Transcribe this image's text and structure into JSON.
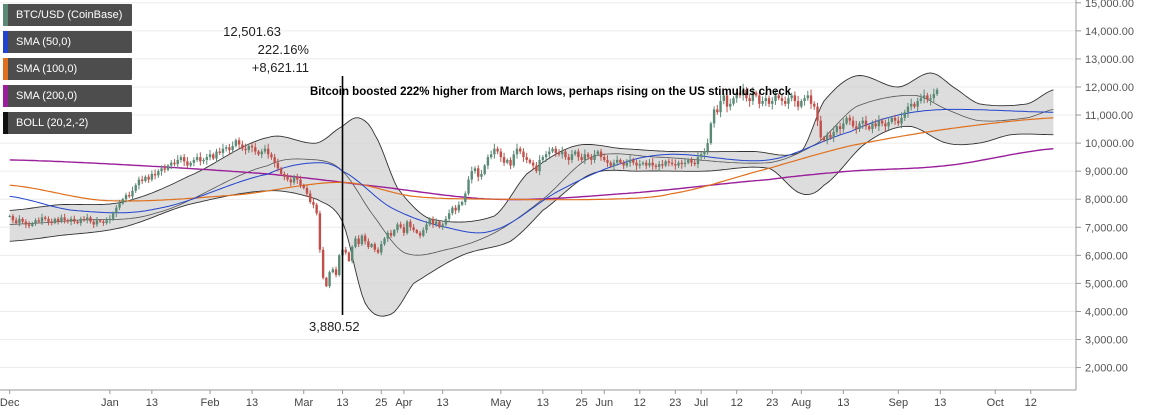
{
  "legend": [
    {
      "label": "BTC/USD (CoinBase)",
      "color": "#5a8a76"
    },
    {
      "label": "SMA (50,0)",
      "color": "#2244cc"
    },
    {
      "label": "SMA (100,0)",
      "color": "#e0701e"
    },
    {
      "label": "SMA (200,0)",
      "color": "#9a1f9a"
    },
    {
      "label": "BOLL (20,2,-2)",
      "color": "#111111"
    }
  ],
  "annotations": {
    "high_price": "12,501.63",
    "gain_pct": "222.16%",
    "gain_abs": "+8,621.11",
    "low_price": "3,880.52",
    "headline": "Bitcoin boosted 222% higher from March lows, perhaps rising on the US stimulus check"
  },
  "chart_data": {
    "type": "candlestick",
    "yaxis": {
      "ticks": [
        2000,
        3000,
        4000,
        5000,
        6000,
        7000,
        8000,
        9000,
        10000,
        11000,
        12000,
        13000,
        14000,
        15000
      ],
      "tick_labels": [
        "2,000.00",
        "3,000.00",
        "4,000.00",
        "5,000.00",
        "6,000.00",
        "7,000.00",
        "8,000.00",
        "9,000.00",
        "10,000.00",
        "11,000.00",
        "12,000.00",
        "13,000.00",
        "14,000.00",
        "15,000.00"
      ],
      "ylim": [
        1200,
        15100
      ]
    },
    "xaxis": {
      "tick_labels": [
        "Dec",
        "Jan",
        "13",
        "Feb",
        "13",
        "Mar",
        "13",
        "25",
        "Apr",
        "13",
        "May",
        "13",
        "25",
        "Jun",
        "12",
        "23",
        "Jul",
        "12",
        "23",
        "Aug",
        "13",
        "Sep",
        "13",
        "Oct",
        "12"
      ],
      "tick_days": [
        0,
        31,
        44,
        62,
        75,
        91,
        103,
        115,
        122,
        134,
        152,
        165,
        177,
        184,
        195,
        206,
        214,
        225,
        236,
        245,
        258,
        275,
        288,
        305,
        316
      ],
      "xlim": [
        -3,
        330
      ]
    },
    "candles_close": [
      7400,
      7250,
      7150,
      7300,
      7200,
      7100,
      7050,
      7150,
      7250,
      7200,
      7350,
      7300,
      7200,
      7150,
      7300,
      7200,
      7350,
      7250,
      7200,
      7300,
      7200,
      7150,
      7300,
      7250,
      7350,
      7200,
      7100,
      7250,
      7200,
      7150,
      7250,
      7300,
      7500,
      7700,
      7850,
      8000,
      8150,
      8100,
      8300,
      8500,
      8700,
      8650,
      8800,
      8700,
      8900,
      8850,
      9000,
      9100,
      9050,
      9200,
      9300,
      9250,
      9400,
      9500,
      9350,
      9200,
      9300,
      9400,
      9500,
      9350,
      9400,
      9500,
      9600,
      9450,
      9700,
      9650,
      9800,
      9850,
      9750,
      9900,
      10100,
      9950,
      9800,
      9750,
      9900,
      9850,
      9700,
      9600,
      9700,
      9800,
      9600,
      9500,
      9300,
      9100,
      8900,
      8800,
      8700,
      8600,
      8800,
      8700,
      8500,
      8400,
      8200,
      7900,
      7800,
      7500,
      6200,
      5200,
      4900,
      5400,
      5500,
      5300,
      6000,
      6200,
      6100,
      5800,
      6300,
      6600,
      6400,
      6700,
      6500,
      6300,
      6400,
      6200,
      6100,
      6400,
      6600,
      6800,
      6700,
      6900,
      7100,
      7000,
      6800,
      7200,
      7000,
      6900,
      6800,
      6700,
      6900,
      7100,
      7300,
      7100,
      7200,
      7000,
      7100,
      7300,
      7500,
      7700,
      7600,
      7800,
      7900,
      8200,
      8700,
      9000,
      9100,
      8800,
      8900,
      9200,
      9500,
      9600,
      9800,
      9700,
      9500,
      9300,
      9400,
      9200,
      9600,
      9800,
      9700,
      9500,
      9400,
      9300,
      9200,
      9000,
      9400,
      9500,
      9600,
      9700,
      9800,
      9650,
      9600,
      9700,
      9500,
      9400,
      9600,
      9700,
      9500,
      9400,
      9600,
      9500,
      9400,
      9600,
      9700,
      9500,
      9400,
      9300,
      9200,
      9300,
      9400,
      9300,
      9200,
      9300,
      9400,
      9300,
      9200,
      9250,
      9300,
      9200,
      9300,
      9200,
      9150,
      9250,
      9200,
      9350,
      9300,
      9250,
      9200,
      9300,
      9250,
      9300,
      9400,
      9300,
      9250,
      9500,
      9600,
      9700,
      10000,
      10700,
      11200,
      11100,
      11500,
      11700,
      11300,
      11400,
      11600,
      11800,
      11700,
      11900,
      11600,
      11500,
      11800,
      11700,
      11400,
      11500,
      11600,
      11400,
      11500,
      11700,
      11600,
      11500,
      11400,
      11600,
      11700,
      11500,
      11300,
      11500,
      11600,
      11700,
      11400,
      11300,
      10800,
      10200,
      10100,
      10300,
      10200,
      10400,
      10600,
      10500,
      10700,
      10900,
      10800,
      10600,
      10500,
      10700,
      10800,
      10600,
      10500,
      10700,
      10600,
      10800,
      10700,
      10600,
      10750,
      10900,
      10800,
      10700,
      10900,
      11100,
      11300,
      11400,
      11300,
      11500,
      11600,
      11700,
      11550,
      11600,
      11750,
      11900
    ],
    "sma50": [
      [
        0,
        8100
      ],
      [
        20,
        7600
      ],
      [
        45,
        7650
      ],
      [
        80,
        8900
      ],
      [
        95,
        9300
      ],
      [
        103,
        9000
      ],
      [
        118,
        7700
      ],
      [
        135,
        7000
      ],
      [
        150,
        6900
      ],
      [
        170,
        8300
      ],
      [
        190,
        9300
      ],
      [
        205,
        9600
      ],
      [
        235,
        9400
      ],
      [
        260,
        10400
      ],
      [
        275,
        11000
      ],
      [
        290,
        11200
      ],
      [
        323,
        11100
      ]
    ],
    "sma100": [
      [
        0,
        8500
      ],
      [
        30,
        7950
      ],
      [
        70,
        8150
      ],
      [
        103,
        8600
      ],
      [
        125,
        8100
      ],
      [
        150,
        8000
      ],
      [
        185,
        8000
      ],
      [
        205,
        8200
      ],
      [
        235,
        9100
      ],
      [
        260,
        9900
      ],
      [
        290,
        10500
      ],
      [
        323,
        10900
      ]
    ],
    "sma200": [
      [
        0,
        9400
      ],
      [
        40,
        9200
      ],
      [
        80,
        8900
      ],
      [
        110,
        8500
      ],
      [
        150,
        8000
      ],
      [
        190,
        8200
      ],
      [
        235,
        8700
      ],
      [
        260,
        9000
      ],
      [
        290,
        9200
      ],
      [
        323,
        9800
      ]
    ],
    "boll_upper": [
      [
        0,
        7600
      ],
      [
        15,
        7800
      ],
      [
        35,
        7900
      ],
      [
        55,
        8800
      ],
      [
        80,
        10200
      ],
      [
        95,
        10000
      ],
      [
        103,
        10600
      ],
      [
        108,
        10900
      ],
      [
        113,
        10300
      ],
      [
        120,
        8400
      ],
      [
        130,
        7300
      ],
      [
        150,
        7400
      ],
      [
        160,
        8900
      ],
      [
        175,
        9900
      ],
      [
        190,
        9800
      ],
      [
        205,
        9700
      ],
      [
        230,
        9700
      ],
      [
        245,
        9700
      ],
      [
        252,
        11500
      ],
      [
        262,
        12400
      ],
      [
        275,
        12000
      ],
      [
        285,
        12500
      ],
      [
        292,
        12000
      ],
      [
        300,
        11400
      ],
      [
        315,
        11400
      ],
      [
        323,
        11900
      ]
    ],
    "boll_lower": [
      [
        0,
        6500
      ],
      [
        15,
        6700
      ],
      [
        35,
        7000
      ],
      [
        55,
        7800
      ],
      [
        80,
        8300
      ],
      [
        95,
        8000
      ],
      [
        103,
        7200
      ],
      [
        110,
        4300
      ],
      [
        118,
        3900
      ],
      [
        125,
        5000
      ],
      [
        140,
        6000
      ],
      [
        155,
        6500
      ],
      [
        165,
        7600
      ],
      [
        180,
        8900
      ],
      [
        195,
        9000
      ],
      [
        215,
        9000
      ],
      [
        235,
        9100
      ],
      [
        245,
        8200
      ],
      [
        252,
        8500
      ],
      [
        265,
        10000
      ],
      [
        278,
        10600
      ],
      [
        290,
        10000
      ],
      [
        300,
        10000
      ],
      [
        310,
        10300
      ],
      [
        323,
        10300
      ]
    ],
    "boll_mid": [
      [
        0,
        7100
      ],
      [
        20,
        7250
      ],
      [
        45,
        7500
      ],
      [
        80,
        9200
      ],
      [
        95,
        9400
      ],
      [
        103,
        9000
      ],
      [
        112,
        7500
      ],
      [
        122,
        6100
      ],
      [
        135,
        6200
      ],
      [
        150,
        6800
      ],
      [
        165,
        8000
      ],
      [
        180,
        9500
      ],
      [
        200,
        9500
      ],
      [
        235,
        9300
      ],
      [
        250,
        10000
      ],
      [
        262,
        11300
      ],
      [
        280,
        11700
      ],
      [
        290,
        11200
      ],
      [
        300,
        10800
      ],
      [
        315,
        10900
      ],
      [
        323,
        11200
      ]
    ],
    "event_day": 103
  }
}
